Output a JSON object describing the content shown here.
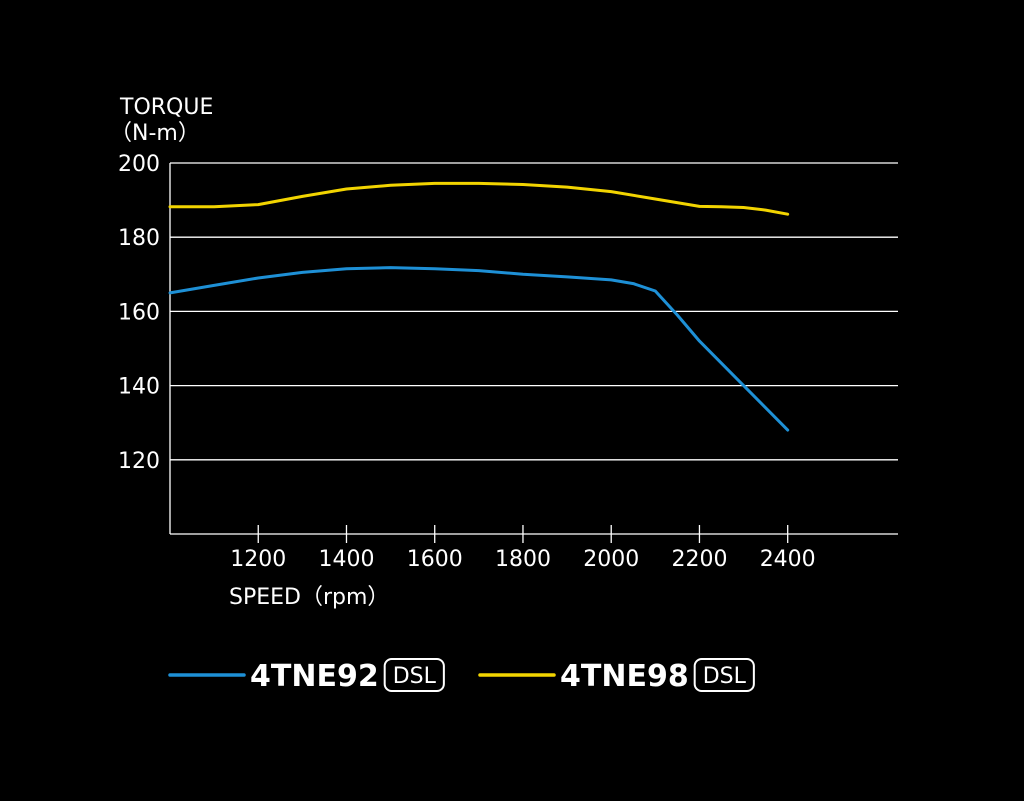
{
  "chart_data": {
    "type": "line",
    "ylabel_line1": "TORQUE",
    "ylabel_line2": "（N-m）",
    "xlabel": "SPEED（rpm）",
    "xlim": [
      1000,
      2650
    ],
    "ylim": [
      100,
      200
    ],
    "x_ticks": [
      1200,
      1400,
      1600,
      1800,
      2000,
      2200,
      2400
    ],
    "x_tick_labels": [
      "1200",
      "1400",
      "1600",
      "1800",
      "2000",
      "2200",
      "2400"
    ],
    "y_ticks": [
      120,
      140,
      160,
      180,
      200
    ],
    "y_tick_labels": [
      "120",
      "140",
      "160",
      "180",
      "200"
    ],
    "grid": true,
    "legend_position": "bottom",
    "series": [
      {
        "name": "4TNE92",
        "badge": "DSL",
        "color": "#1e90d6",
        "x": [
          1000,
          1100,
          1200,
          1300,
          1400,
          1500,
          1600,
          1700,
          1800,
          1900,
          2000,
          2050,
          2100,
          2150,
          2200,
          2300,
          2400
        ],
        "y": [
          165,
          167,
          169,
          170.5,
          171.5,
          171.8,
          171.5,
          171,
          170,
          169.3,
          168.5,
          167.5,
          165.5,
          159,
          152,
          140,
          128
        ]
      },
      {
        "name": "4TNE98",
        "badge": "DSL",
        "color": "#f2d400",
        "x": [
          1000,
          1100,
          1200,
          1300,
          1400,
          1500,
          1600,
          1700,
          1800,
          1900,
          2000,
          2100,
          2200,
          2250,
          2300,
          2350,
          2400
        ],
        "y": [
          188.2,
          188.2,
          188.8,
          191,
          193,
          194,
          194.5,
          194.5,
          194.2,
          193.5,
          192.3,
          190.3,
          188.3,
          188.2,
          188,
          187.3,
          186.2
        ]
      }
    ]
  }
}
